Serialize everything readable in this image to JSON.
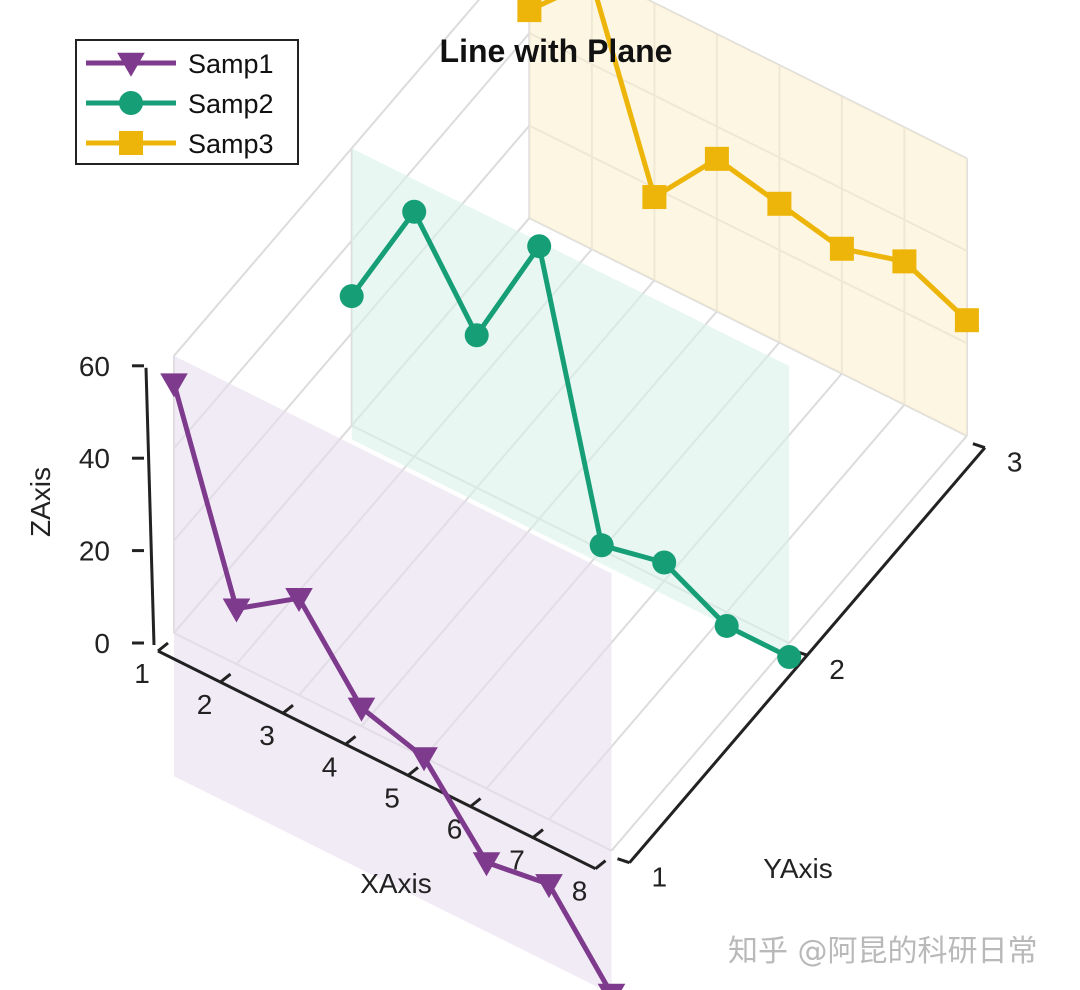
{
  "watermark": "知乎 @阿昆的科研日常",
  "chart_data": {
    "type": "line3d",
    "title": "Line with Plane",
    "xlabel": "XAxis",
    "ylabel": "YAxis",
    "zlabel": "ZAxis",
    "x": [
      1,
      2,
      3,
      4,
      5,
      6,
      7,
      8
    ],
    "xticks": [
      "1",
      "2",
      "3",
      "4",
      "5",
      "6",
      "7",
      "8"
    ],
    "yticks": [
      "1",
      "2",
      "3"
    ],
    "zticks": [
      "0",
      "20",
      "40",
      "60"
    ],
    "xlim": [
      1,
      8
    ],
    "ylim": [
      1,
      3
    ],
    "zlim": [
      0,
      60
    ],
    "grid": true,
    "legend_position": "top-left",
    "series": [
      {
        "name": "Samp1",
        "y": 1,
        "marker": "triangle-down",
        "color": "#7E3A8C",
        "plane_color": "#E8DDEE",
        "values": [
          54,
          12,
          21,
          4,
          0,
          -16,
          -14,
          -31
        ]
      },
      {
        "name": "Samp2",
        "y": 2,
        "marker": "circle",
        "color": "#169E77",
        "plane_color": "#D9F2EA",
        "values": [
          28,
          53,
          33,
          59,
          1,
          4,
          -3,
          -3
        ]
      },
      {
        "name": "Samp3",
        "y": 3,
        "marker": "square",
        "color": "#EDB509",
        "plane_color": "#FCF0CE",
        "values": [
          45,
          58,
          18,
          33,
          30,
          27,
          31,
          25
        ]
      }
    ]
  }
}
